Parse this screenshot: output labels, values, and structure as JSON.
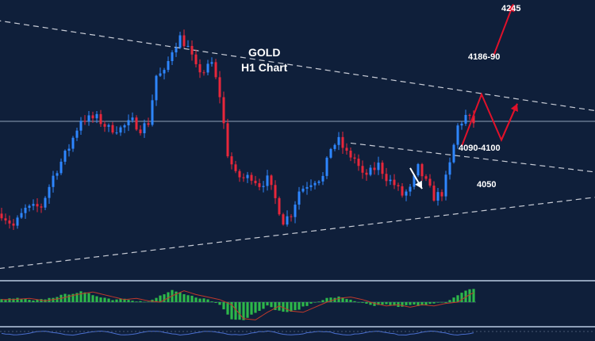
{
  "chart_data": [
    {
      "type": "candlestick",
      "title": "GOLD",
      "subtitle": "H1 Chart",
      "yrange": [
        4010,
        4270
      ],
      "candle_count": 120,
      "price_path": [
        [
          0,
          4064
        ],
        [
          3,
          4052
        ],
        [
          6,
          4068
        ],
        [
          10,
          4071
        ],
        [
          13,
          4100
        ],
        [
          17,
          4128
        ],
        [
          20,
          4155
        ],
        [
          24,
          4156
        ],
        [
          27,
          4146
        ],
        [
          30,
          4146
        ],
        [
          33,
          4153
        ],
        [
          35,
          4146
        ],
        [
          37,
          4152
        ],
        [
          39,
          4197
        ],
        [
          41,
          4199
        ],
        [
          43,
          4222
        ],
        [
          45,
          4234
        ],
        [
          47,
          4224
        ],
        [
          49,
          4204
        ],
        [
          51,
          4201
        ],
        [
          53,
          4209
        ],
        [
          55,
          4178
        ],
        [
          57,
          4122
        ],
        [
          59,
          4101
        ],
        [
          61,
          4098
        ],
        [
          63,
          4100
        ],
        [
          65,
          4092
        ],
        [
          67,
          4097
        ],
        [
          69,
          4078
        ],
        [
          71,
          4057
        ],
        [
          73,
          4064
        ],
        [
          75,
          4086
        ],
        [
          77,
          4092
        ],
        [
          79,
          4097
        ],
        [
          81,
          4099
        ],
        [
          83,
          4128
        ],
        [
          85,
          4134
        ],
        [
          87,
          4122
        ],
        [
          89,
          4117
        ],
        [
          91,
          4100
        ],
        [
          93,
          4104
        ],
        [
          95,
          4111
        ],
        [
          97,
          4099
        ],
        [
          99,
          4092
        ],
        [
          101,
          4082
        ],
        [
          103,
          4087
        ],
        [
          105,
          4108
        ],
        [
          107,
          4094
        ],
        [
          109,
          4080
        ],
        [
          111,
          4084
        ],
        [
          113,
          4111
        ],
        [
          115,
          4148
        ],
        [
          117,
          4158
        ],
        [
          119,
          4152
        ]
      ],
      "level_line": 4153,
      "trendlines": [
        {
          "name": "upper-resistance",
          "points": [
            [
              -30,
              4267
            ],
            [
              183,
              4144
            ]
          ]
        },
        {
          "name": "lower-support",
          "points": [
            [
              -3,
              4010
            ],
            [
              183,
              4095
            ]
          ]
        },
        {
          "name": "triangle-upper",
          "points": [
            [
              88,
              4132
            ],
            [
              183,
              4089
            ]
          ]
        }
      ],
      "projection_red": [
        [
          116,
          4129
        ],
        [
          121,
          4179
        ],
        [
          126,
          4135
        ],
        [
          130,
          4170
        ]
      ],
      "projection_red_arrow": [
        [
          124,
          4216
        ],
        [
          129,
          4266
        ]
      ],
      "projection_white_arrow": [
        [
          103,
          4108
        ],
        [
          106,
          4088
        ]
      ],
      "annotations": [
        {
          "text": "4245"
        },
        {
          "text": "4186-90"
        },
        {
          "text": "4090-4100"
        },
        {
          "text": "4050"
        }
      ],
      "colors": {
        "background": "#0f1f3a",
        "bull_candle": "#2e86ff",
        "bear_candle": "#e8273b",
        "trendline": "#c8ccd6",
        "level_line": "#8fa0b8",
        "projection_red": "#e0112a",
        "projection_white": "#ffffff"
      }
    },
    {
      "type": "histogram",
      "name": "oscillator",
      "bar_count": 120,
      "zero_line": 0,
      "profile": [
        [
          0,
          2
        ],
        [
          4,
          3
        ],
        [
          8,
          1
        ],
        [
          12,
          3
        ],
        [
          16,
          6
        ],
        [
          20,
          8
        ],
        [
          24,
          5
        ],
        [
          28,
          2
        ],
        [
          31,
          3
        ],
        [
          34,
          1
        ],
        [
          37,
          0
        ],
        [
          40,
          5
        ],
        [
          43,
          9
        ],
        [
          46,
          6
        ],
        [
          49,
          4
        ],
        [
          52,
          2
        ],
        [
          55,
          -2
        ],
        [
          58,
          -13
        ],
        [
          61,
          -14
        ],
        [
          64,
          -8
        ],
        [
          67,
          -3
        ],
        [
          70,
          -7
        ],
        [
          73,
          -8
        ],
        [
          76,
          -4
        ],
        [
          79,
          0
        ],
        [
          82,
          3
        ],
        [
          85,
          4
        ],
        [
          88,
          2
        ],
        [
          91,
          -1
        ],
        [
          94,
          -3
        ],
        [
          97,
          -2
        ],
        [
          100,
          -4
        ],
        [
          103,
          -2
        ],
        [
          106,
          -3
        ],
        [
          109,
          -1
        ],
        [
          112,
          0
        ],
        [
          115,
          6
        ],
        [
          118,
          10
        ],
        [
          119,
          10
        ]
      ],
      "colors": {
        "bars": "#2db84a",
        "signal": "#c0392b"
      }
    },
    {
      "type": "line",
      "name": "bottom-indicator",
      "colors": {
        "line": "#4a6fd0"
      }
    }
  ]
}
